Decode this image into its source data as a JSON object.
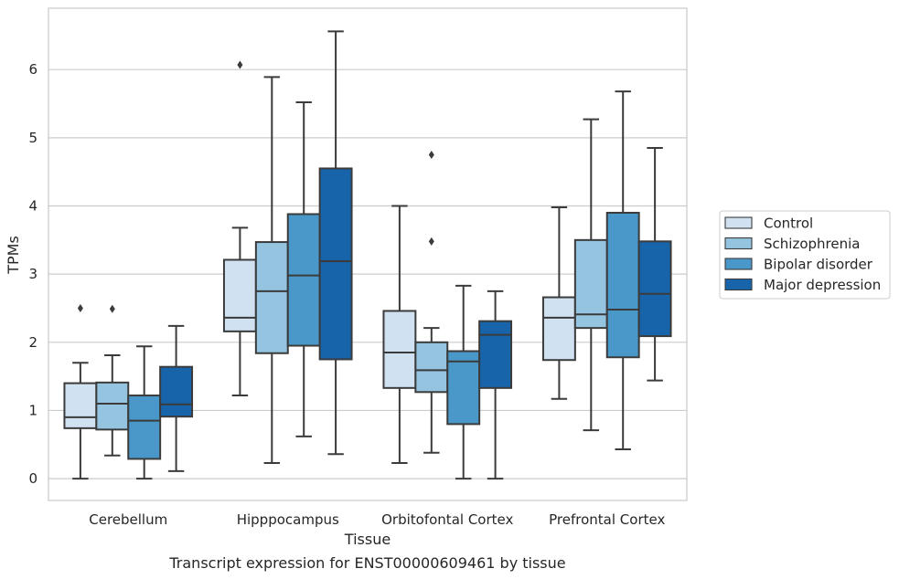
{
  "chart_data": {
    "type": "box",
    "title": "",
    "caption": "Transcript expression for ENST00000609461 by tissue",
    "xlabel": "Tissue",
    "ylabel": "TPMs",
    "ylim": [
      -0.32,
      6.9
    ],
    "yticks": [
      0,
      1,
      2,
      3,
      4,
      5,
      6
    ],
    "grid": true,
    "legend_position": "right",
    "categories": [
      "Cerebellum",
      "Hipppocampus",
      "Orbitofontal Cortex",
      "Prefrontal Cortex"
    ],
    "series": [
      {
        "name": "Control",
        "color": "#d0e1f2",
        "boxes": [
          {
            "whislo": 0.0,
            "q1": 0.74,
            "med": 0.9,
            "q3": 1.4,
            "whishi": 1.7,
            "fliers": [
              2.5
            ]
          },
          {
            "whislo": 1.22,
            "q1": 2.16,
            "med": 2.36,
            "q3": 3.21,
            "whishi": 3.68,
            "fliers": [
              6.07
            ]
          },
          {
            "whislo": 0.23,
            "q1": 1.33,
            "med": 1.85,
            "q3": 2.46,
            "whishi": 4.0,
            "fliers": []
          },
          {
            "whislo": 1.17,
            "q1": 1.74,
            "med": 2.36,
            "q3": 2.66,
            "whishi": 3.98,
            "fliers": []
          }
        ]
      },
      {
        "name": "Schizophrenia",
        "color": "#94c4df",
        "boxes": [
          {
            "whislo": 0.34,
            "q1": 0.72,
            "med": 1.1,
            "q3": 1.41,
            "whishi": 1.81,
            "fliers": [
              2.49
            ]
          },
          {
            "whislo": 0.23,
            "q1": 1.84,
            "med": 2.75,
            "q3": 3.47,
            "whishi": 5.89,
            "fliers": []
          },
          {
            "whislo": 0.38,
            "q1": 1.27,
            "med": 1.59,
            "q3": 2.0,
            "whishi": 2.21,
            "fliers": [
              4.75,
              3.48
            ]
          },
          {
            "whislo": 0.71,
            "q1": 2.21,
            "med": 2.41,
            "q3": 3.5,
            "whishi": 5.27,
            "fliers": []
          }
        ]
      },
      {
        "name": "Bipolar disorder",
        "color": "#4a98c9",
        "boxes": [
          {
            "whislo": 0.0,
            "q1": 0.29,
            "med": 0.85,
            "q3": 1.22,
            "whishi": 1.94,
            "fliers": []
          },
          {
            "whislo": 0.62,
            "q1": 1.95,
            "med": 2.98,
            "q3": 3.88,
            "whishi": 5.52,
            "fliers": []
          },
          {
            "whislo": 0.0,
            "q1": 0.8,
            "med": 1.72,
            "q3": 1.87,
            "whishi": 2.83,
            "fliers": []
          },
          {
            "whislo": 0.43,
            "q1": 1.78,
            "med": 2.48,
            "q3": 3.9,
            "whishi": 5.68,
            "fliers": []
          }
        ]
      },
      {
        "name": "Major depression",
        "color": "#1764ab",
        "boxes": [
          {
            "whislo": 0.11,
            "q1": 0.91,
            "med": 1.09,
            "q3": 1.64,
            "whishi": 2.24,
            "fliers": []
          },
          {
            "whislo": 0.36,
            "q1": 1.75,
            "med": 3.19,
            "q3": 4.55,
            "whishi": 6.56,
            "fliers": []
          },
          {
            "whislo": 0.0,
            "q1": 1.33,
            "med": 2.11,
            "q3": 2.31,
            "whishi": 2.75,
            "fliers": []
          },
          {
            "whislo": 1.44,
            "q1": 2.09,
            "med": 2.71,
            "q3": 3.48,
            "whishi": 4.85,
            "fliers": []
          }
        ]
      }
    ]
  }
}
